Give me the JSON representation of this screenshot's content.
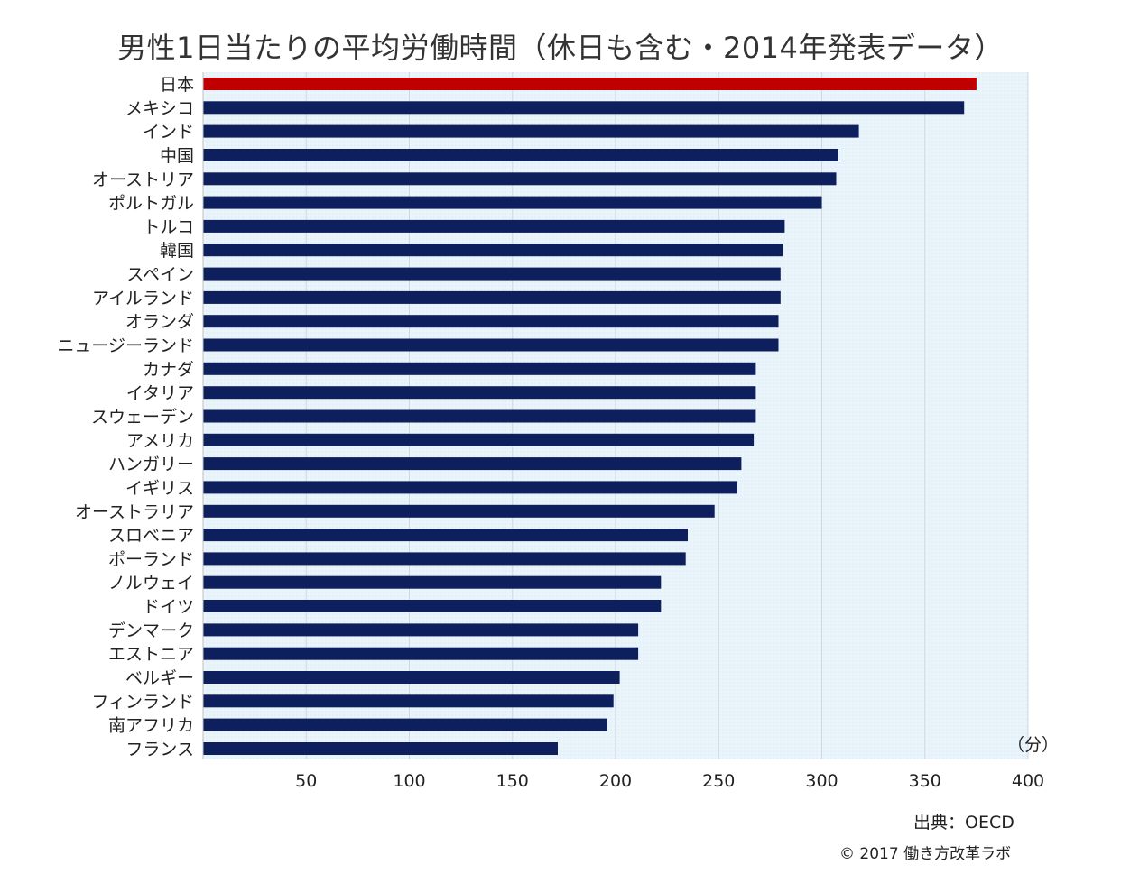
{
  "chart_data": {
    "type": "bar",
    "orientation": "horizontal",
    "title": "男性1日当たりの平均労働時間（休日も含む・2014年発表データ）",
    "categories": [
      "日本",
      "メキシコ",
      "インド",
      "中国",
      "オーストリア",
      "ポルトガル",
      "トルコ",
      "韓国",
      "スペイン",
      "アイルランド",
      "オランダ",
      "ニュージーランド",
      "カナダ",
      "イタリア",
      "スウェーデン",
      "アメリカ",
      "ハンガリー",
      "イギリス",
      "オーストラリア",
      "スロベニア",
      "ポーランド",
      "ノルウェイ",
      "ドイツ",
      "デンマーク",
      "エストニア",
      "ベルギー",
      "フィンランド",
      "南アフリカ",
      "フランス"
    ],
    "values": [
      375,
      369,
      318,
      308,
      307,
      300,
      282,
      281,
      280,
      280,
      279,
      279,
      268,
      268,
      268,
      267,
      261,
      259,
      248,
      235,
      234,
      222,
      222,
      211,
      211,
      202,
      199,
      196,
      172
    ],
    "highlight_category": "日本",
    "xlim": [
      0,
      400
    ],
    "xticks": [
      50,
      100,
      150,
      200,
      250,
      300,
      350,
      400
    ],
    "unit_label": "（分）",
    "grid": true,
    "legend": "none",
    "colors": {
      "bar": "#0d1f5c",
      "highlight": "#c00000",
      "plot_background": "#e9f4fb",
      "grid": "#cfd8de"
    }
  },
  "notes": {
    "source": "出典：OECD",
    "copyright": "© 2017 働き方改革ラボ"
  }
}
